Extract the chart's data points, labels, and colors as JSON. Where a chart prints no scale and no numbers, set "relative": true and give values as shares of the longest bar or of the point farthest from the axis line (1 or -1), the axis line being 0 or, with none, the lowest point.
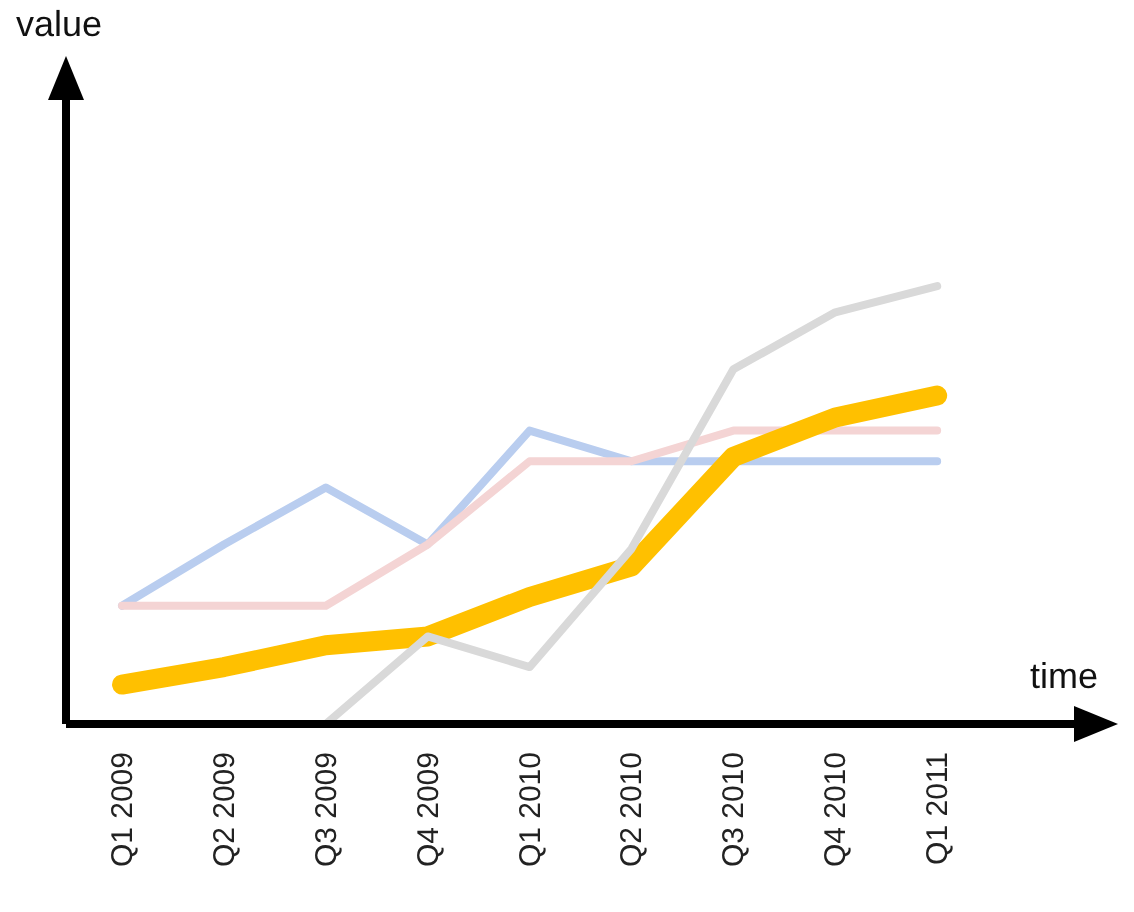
{
  "chart_data": {
    "type": "line",
    "relative": true,
    "xlabel": "time",
    "annotations": [
      "value"
    ],
    "categories": [
      "Q1 2009",
      "Q2 2009",
      "Q3 2009",
      "Q4 2009",
      "Q1 2010",
      "Q2 2010",
      "Q3 2010",
      "Q4 2010",
      "Q1 2011"
    ],
    "series": [
      {
        "color": "#b9cdef",
        "values": [
          0.27,
          0.41,
          0.54,
          0.41,
          0.67,
          0.6,
          0.6,
          0.6,
          0.6
        ]
      },
      {
        "color": "#f4d4d4",
        "values": [
          0.27,
          0.27,
          0.27,
          0.41,
          0.6,
          0.6,
          0.67,
          0.67,
          0.67
        ]
      },
      {
        "color": "#ffc000",
        "values": [
          0.09,
          0.13,
          0.18,
          0.2,
          0.29,
          0.36,
          0.61,
          0.7,
          0.75
        ]
      },
      {
        "color": "#d9d9d9",
        "values": [
          null,
          null,
          0,
          0.2,
          0.13,
          0.4,
          0.81,
          0.94,
          1
        ]
      }
    ]
  }
}
